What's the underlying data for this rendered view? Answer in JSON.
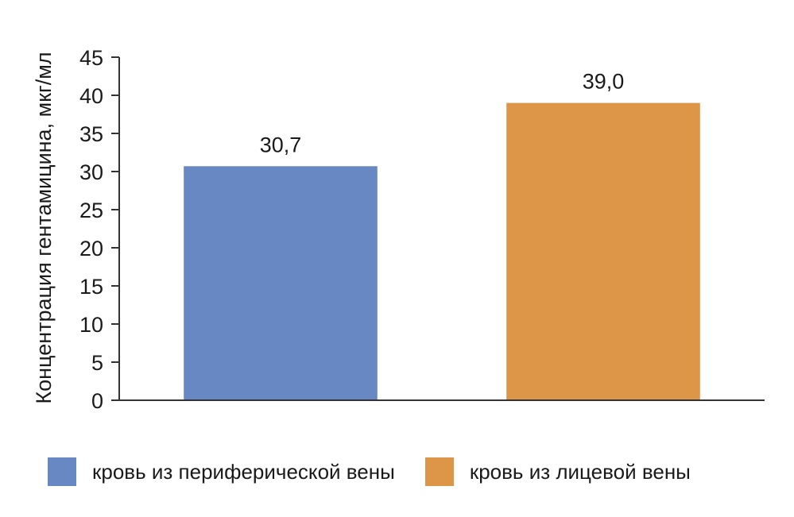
{
  "chart_data": {
    "type": "bar",
    "categories": [
      "кровь из периферической вены",
      "кровь из лицевой вены"
    ],
    "values": [
      30.7,
      39.0
    ],
    "value_labels": [
      "30,7",
      "39,0"
    ],
    "colors": [
      "#6788c3",
      "#dd9548"
    ],
    "ylabel": "Концентрация гентамицина, мкг/мл",
    "ylim": [
      0,
      45
    ],
    "yticks": [
      "0",
      "5",
      "10",
      "15",
      "20",
      "25",
      "30",
      "35",
      "40",
      "45"
    ],
    "grid": false,
    "legend_position": "bottom"
  }
}
